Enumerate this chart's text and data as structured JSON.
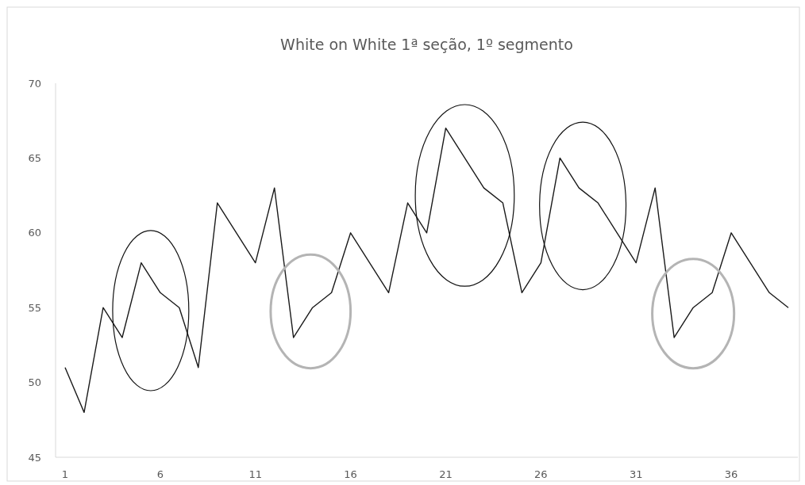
{
  "chart_data": {
    "type": "line",
    "title": "White on White 1ª seção, 1º segmento",
    "categories": [
      "1",
      null,
      null,
      null,
      null,
      "6",
      null,
      null,
      null,
      null,
      "11",
      null,
      null,
      null,
      null,
      "16",
      null,
      null,
      null,
      null,
      "21",
      null,
      null,
      null,
      null,
      "26",
      null,
      null,
      null,
      null,
      "31",
      null,
      null,
      null,
      null,
      "36",
      null,
      null,
      null
    ],
    "series": [
      {
        "color": "#1a1a1a",
        "values": [
          51,
          48,
          55,
          53,
          58,
          56,
          55,
          51,
          62,
          60,
          58,
          63,
          53,
          55,
          56,
          60,
          58,
          56,
          62,
          60,
          67,
          65,
          63,
          62,
          56,
          58,
          65,
          63,
          62,
          60,
          58,
          63,
          53,
          55,
          56,
          60,
          58,
          56,
          55
        ]
      }
    ],
    "ylim": [
      45,
      70
    ],
    "yticks": [
      45,
      50,
      55,
      60,
      65,
      70
    ],
    "grid": false,
    "marker": "none",
    "line_style": "solid"
  }
}
